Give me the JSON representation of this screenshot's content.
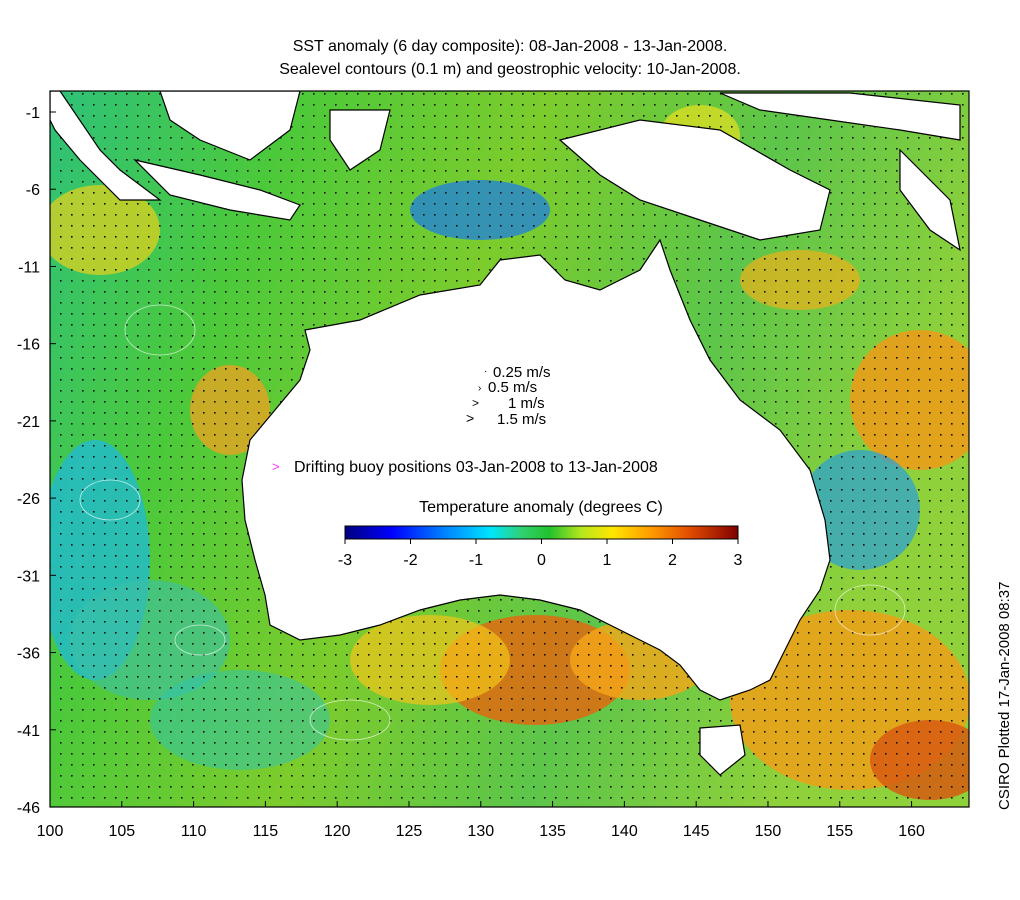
{
  "title_line1": "SST anomaly (6 day composite): 08-Jan-2008 - 13-Jan-2008.",
  "title_line2": "Sealevel contours (0.1 m) and geostrophic velocity: 10-Jan-2008.",
  "credit": "CSIRO Plotted 17-Jan-2008 08:37",
  "map": {
    "lon_range": [
      100,
      164
    ],
    "lat_range": [
      -46,
      0
    ],
    "x_ticks": [
      "100",
      "105",
      "110",
      "115",
      "120",
      "125",
      "130",
      "135",
      "140",
      "145",
      "150",
      "155",
      "160"
    ],
    "y_ticks": [
      "-1",
      "-6",
      "-11",
      "-16",
      "-21",
      "-26",
      "-31",
      "-36",
      "-41",
      "-46"
    ],
    "region": "Australia and surrounding ocean"
  },
  "velocity_legend": {
    "items": [
      "0.25 m/s",
      "0.5 m/s",
      "1 m/s",
      "1.5 m/s"
    ]
  },
  "buoy_legend": {
    "marker": ">",
    "label": "Drifting buoy positions 03-Jan-2008 to 13-Jan-2008",
    "color": "#ff33ff"
  },
  "colorbar": {
    "title": "Temperature anomaly (degrees C)",
    "range": [
      -3,
      3
    ],
    "ticks": [
      "-3",
      "-2",
      "-1",
      "0",
      "1",
      "2",
      "3"
    ],
    "colors": [
      "#00007f",
      "#0000ff",
      "#0080ff",
      "#00e5ff",
      "#30d070",
      "#22c22c",
      "#b4e61e",
      "#ffe600",
      "#ff9a00",
      "#e04a00",
      "#7f0000"
    ]
  }
}
